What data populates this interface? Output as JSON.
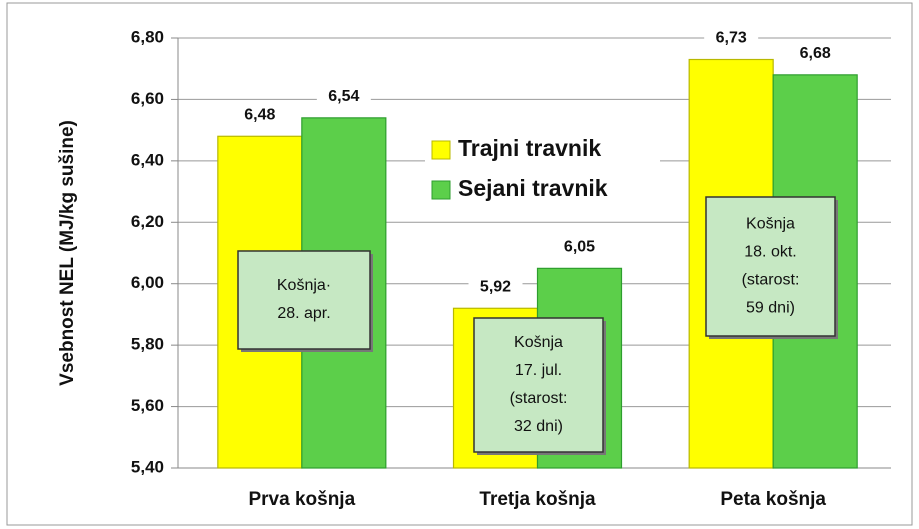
{
  "chart_data": {
    "type": "bar",
    "y_label": "Vsebnost NEL (MJ/kg sušine)",
    "categories": [
      "Prva košnja",
      "Tretja košnja",
      "Peta košnja"
    ],
    "series": [
      {
        "name": "Trajni travnik",
        "color": "#ffff00",
        "values": [
          6.48,
          5.92,
          6.73
        ],
        "value_labels": [
          "6,48",
          "5,92",
          "6,73"
        ]
      },
      {
        "name": "Sejani travnik",
        "color": "#5ccf4a",
        "values": [
          6.54,
          6.05,
          6.68
        ],
        "value_labels": [
          "6,54",
          "6,05",
          "6,68"
        ]
      }
    ],
    "ylim": [
      5.4,
      6.8
    ],
    "yticks": [
      {
        "value": 5.4,
        "label": "5,40"
      },
      {
        "value": 5.6,
        "label": "5,60"
      },
      {
        "value": 5.8,
        "label": "5,80"
      },
      {
        "value": 6.0,
        "label": "6,00"
      },
      {
        "value": 6.2,
        "label": "6,20"
      },
      {
        "value": 6.4,
        "label": "6,40"
      },
      {
        "value": 6.6,
        "label": "6,60"
      },
      {
        "value": 6.8,
        "label": "6,80"
      }
    ],
    "grid": true,
    "legend": "center",
    "annotations": [
      [
        "Košnja·",
        "28. apr."
      ],
      [
        "Košnja",
        "17. jul.",
        "(starost:",
        "32 dni)"
      ],
      [
        "Košnja",
        "18. okt.",
        "(starost:",
        "59 dni)"
      ]
    ]
  }
}
